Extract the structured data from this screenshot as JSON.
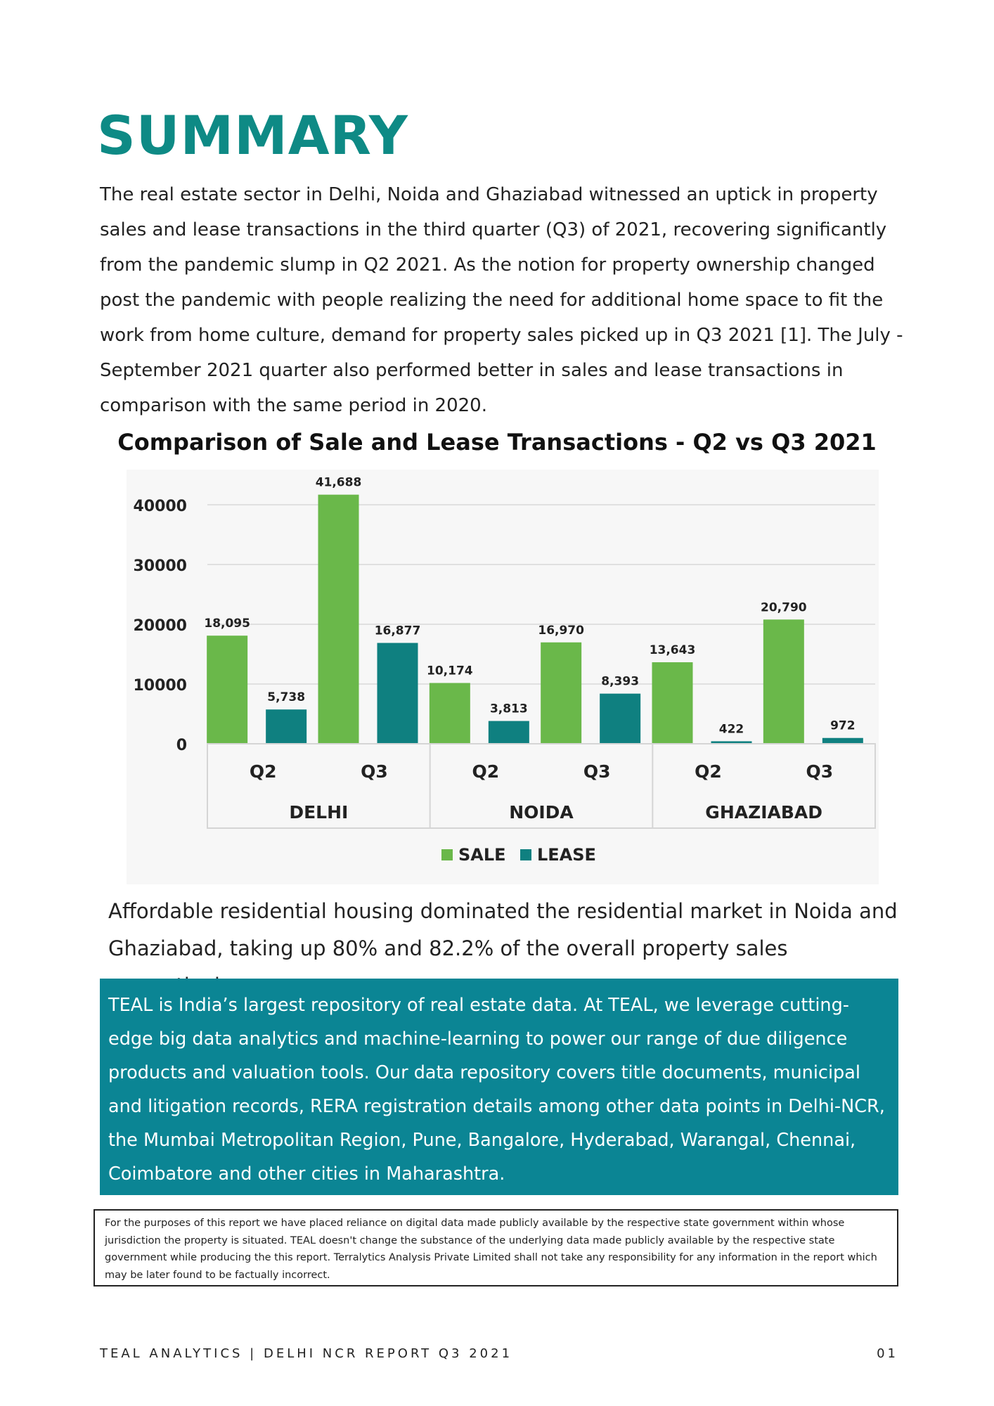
{
  "page": {
    "title": "SUMMARY",
    "intro": "The real estate sector in Delhi, Noida and Ghaziabad witnessed an uptick in property sales and lease transactions in the third quarter (Q3) of 2021, recovering significantly from the pandemic slump in Q2 2021. As the notion for property ownership changed post the pandemic with people realizing the need for additional home space to fit the work from home culture, demand for property sales picked up in Q3 2021 [1]. The July - September 2021 quarter also performed better in sales and lease transactions in comparison with the same period in 2020.",
    "after_chart": "Affordable residential housing dominated the residential market in Noida and Ghaziabad, taking up 80% and 82.2% of the overall property sales respectively.",
    "teal_box": "TEAL is India’s largest repository of real estate data. At TEAL, we leverage cutting-edge big data analytics and machine-learning to power our range of due diligence products and valuation tools. Our data repository covers title documents, municipal and litigation records, RERA registration details among other data points in Delhi-NCR, the Mumbai Metropolitan Region, Pune, Bangalore, Hyderabad, Warangal, Chennai, Coimbatore and other cities in Maharashtra.",
    "disclaimer": "For the purposes of this report we have placed reliance on digital data made publicly available by the respective state government within whose jurisdiction the property is situated. TEAL doesn't change the substance of the underlying data made publicly available by the respective state government while producing the this report. Terralytics Analysis Private Limited shall not take any responsibility for any information in the report which may be later found to be factually incorrect.",
    "footer_left": "TEAL ANALYTICS | DELHI NCR REPORT Q3 2021",
    "footer_right": "01"
  },
  "colors": {
    "title": "#0e8a85",
    "sale": "#6ab84a",
    "lease": "#0f8080",
    "box": "#0b8594"
  },
  "chart_data": {
    "type": "bar",
    "title": "Comparison of Sale and Lease Transactions - Q2 vs Q3  2021",
    "groups": [
      "DELHI",
      "NOIDA",
      "GHAZIABAD"
    ],
    "categories": [
      "Q2",
      "Q3",
      "Q2",
      "Q3",
      "Q2",
      "Q3"
    ],
    "series": [
      {
        "name": "SALE",
        "values": [
          18095,
          41688,
          10174,
          16970,
          13643,
          20790
        ],
        "labels": [
          "18,095",
          "41,688",
          "10,174",
          "16,970",
          "13,643",
          "20,790"
        ]
      },
      {
        "name": "LEASE",
        "values": [
          5738,
          16877,
          3813,
          8393,
          422,
          972
        ],
        "labels": [
          "5,738",
          "16,877",
          "3,813",
          "8,393",
          "422",
          "972"
        ]
      }
    ],
    "yticks": [
      0,
      10000,
      20000,
      30000,
      40000
    ],
    "ylim": [
      0,
      44000
    ],
    "grid": true,
    "legend": "bottom"
  }
}
